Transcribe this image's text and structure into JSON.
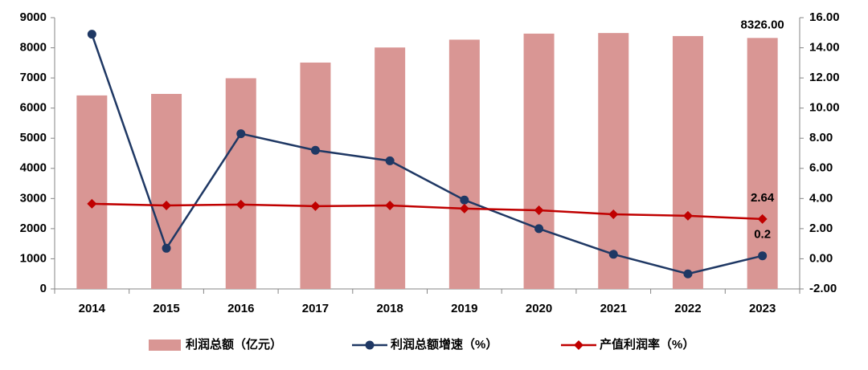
{
  "chart_data": {
    "type": "combo",
    "categories": [
      "2014",
      "2015",
      "2016",
      "2017",
      "2018",
      "2019",
      "2020",
      "2021",
      "2022",
      "2023"
    ],
    "ylim": [
      0,
      9000
    ],
    "yticks": [
      0,
      1000,
      2000,
      3000,
      4000,
      5000,
      6000,
      7000,
      8000,
      9000
    ],
    "y2lim": [
      -2,
      16
    ],
    "y2ticks": [
      {
        "value": -2,
        "label": "-2.00"
      },
      {
        "value": 0,
        "label": "0.00"
      },
      {
        "value": 2,
        "label": "2.00"
      },
      {
        "value": 4,
        "label": "4.00"
      },
      {
        "value": 6,
        "label": "6.00"
      },
      {
        "value": 8,
        "label": "8.00"
      },
      {
        "value": 10,
        "label": "10.00"
      },
      {
        "value": 12,
        "label": "12.00"
      },
      {
        "value": 14,
        "label": "14.00"
      },
      {
        "value": 16,
        "label": "16.00"
      }
    ],
    "legend": "bottom",
    "series": [
      {
        "name": "利润总额（亿元）",
        "type": "bar",
        "color": "#d99694",
        "values": [
          6420,
          6470,
          6990,
          7510,
          8010,
          8270,
          8470,
          8490,
          8390,
          8326
        ],
        "value_labels": [
          null,
          null,
          null,
          null,
          null,
          null,
          null,
          null,
          null,
          "8326.00"
        ]
      },
      {
        "name": "利润总额增速（%）",
        "type": "line",
        "marker": "circle",
        "axis": "y2",
        "color": "#1f3864",
        "values": [
          14.9,
          0.7,
          8.3,
          7.2,
          6.5,
          3.9,
          2.0,
          0.3,
          -1.0,
          0.2
        ],
        "value_labels": [
          null,
          null,
          null,
          null,
          null,
          null,
          null,
          null,
          null,
          "0.2"
        ]
      },
      {
        "name": "产值利润率（%）",
        "type": "line",
        "marker": "diamond",
        "axis": "y2",
        "color": "#c00000",
        "values": [
          3.65,
          3.54,
          3.6,
          3.49,
          3.54,
          3.33,
          3.22,
          2.95,
          2.85,
          2.64
        ],
        "value_labels": [
          null,
          null,
          null,
          null,
          null,
          null,
          null,
          null,
          null,
          "2.64"
        ]
      }
    ]
  }
}
